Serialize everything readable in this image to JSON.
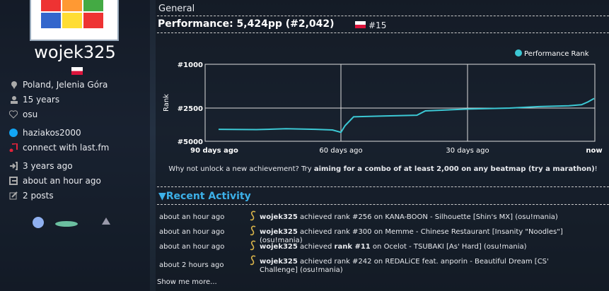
{
  "profile": {
    "username": "wojek325",
    "location": "Poland, Jelenia Góra",
    "age": "15 years",
    "interests": "osu",
    "skype": "haziakos2000",
    "lastfm": "connect with last.fm",
    "joined": "3 years ago",
    "last_active": "about an hour ago",
    "posts": "2 posts"
  },
  "header": {
    "section": "General",
    "performance": "Performance: 5,424pp (#2,042)",
    "country_rank": "#15"
  },
  "chart_data": {
    "type": "line",
    "ylabel": "Rank",
    "log_y": true,
    "y_reversed": true,
    "ylim": [
      1000,
      5000
    ],
    "yticks": [
      {
        "value": 1000,
        "label": "#1000"
      },
      {
        "value": 2500,
        "label": "#2500"
      },
      {
        "value": 5000,
        "label": "#5000"
      }
    ],
    "xlim": [
      -90,
      0
    ],
    "xticks": [
      {
        "value": -90,
        "label": "90 days ago"
      },
      {
        "value": -60,
        "label": "60 days ago"
      },
      {
        "value": -30,
        "label": "30 days ago"
      },
      {
        "value": 0,
        "label": "now"
      }
    ],
    "grid": true,
    "legend": "top-right",
    "x": [
      -89,
      -80,
      -73,
      -66,
      -62,
      -60,
      -59,
      -57,
      -50,
      -42,
      -40,
      -30,
      -20,
      -13,
      -6,
      -3,
      -1.5,
      0
    ],
    "series": [
      {
        "name": "Performance Rank",
        "color": "#3cc8d4",
        "values": [
          3900,
          3920,
          3850,
          3900,
          3950,
          4150,
          3600,
          3000,
          2950,
          2900,
          2650,
          2550,
          2500,
          2420,
          2380,
          2330,
          2200,
          2042
        ]
      }
    ]
  },
  "achievement": {
    "before": "Why not unlock a new achievement? Try ",
    "bold": "aiming for a combo of at least 2,000 on any beatmap (try a marathon)",
    "after": "!"
  },
  "activity": {
    "title": "▼Recent Activity",
    "rows": [
      {
        "time": "about an hour ago",
        "user": "wojek325",
        "text": " achieved rank #256 on KANA-BOON - Silhouette [Shin's MX] (osu!mania)"
      },
      {
        "time": "about an hour ago",
        "user": "wojek325",
        "text": " achieved rank #300 on Memme - Chinese Restaurant [Insanity \"Noodles\"] (osu!mania)"
      },
      {
        "time": "about an hour ago",
        "user": "wojek325",
        "text_before": " achieved ",
        "rank": "rank #11",
        "text_after": " on Ocelot - TSUBAKI [As' Hard] (osu!mania)"
      },
      {
        "time": "about 2 hours ago",
        "user": "wojek325",
        "text": " achieved rank #242 on REDALiCE feat. anporin - Beautiful Dream [CS' Challenge] (osu!mania)"
      }
    ],
    "more": "Show me more..."
  }
}
